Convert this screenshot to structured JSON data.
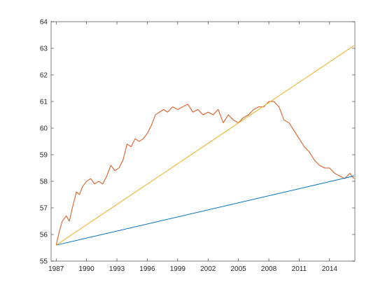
{
  "chart_data": {
    "type": "line",
    "title": "",
    "xlabel": "",
    "ylabel": "",
    "xlim": [
      1986.5,
      2016.5
    ],
    "ylim": [
      55,
      64
    ],
    "grid": false,
    "legend": "none",
    "xticks": [
      {
        "value": 1987,
        "label": "1987"
      },
      {
        "value": 1990,
        "label": "1990"
      },
      {
        "value": 1993,
        "label": "1993"
      },
      {
        "value": 1996,
        "label": "1996"
      },
      {
        "value": 1999,
        "label": "1999"
      },
      {
        "value": 2002,
        "label": "2002"
      },
      {
        "value": 2005,
        "label": "2005"
      },
      {
        "value": 2008,
        "label": "2008"
      },
      {
        "value": 2011,
        "label": "2011"
      },
      {
        "value": 2014,
        "label": "2014"
      }
    ],
    "yticks": [
      {
        "value": 55,
        "label": "55"
      },
      {
        "value": 56,
        "label": "56"
      },
      {
        "value": 57,
        "label": "57"
      },
      {
        "value": 58,
        "label": "58"
      },
      {
        "value": 59,
        "label": "59"
      },
      {
        "value": 60,
        "label": "60"
      },
      {
        "value": 61,
        "label": "61"
      },
      {
        "value": 62,
        "label": "62"
      },
      {
        "value": 63,
        "label": "63"
      },
      {
        "value": 64,
        "label": "64"
      }
    ],
    "series": [
      {
        "color": "#D95319",
        "x": [
          1987.0,
          1987.3,
          1987.6,
          1988.0,
          1988.3,
          1988.6,
          1989.0,
          1989.3,
          1989.6,
          1990.0,
          1990.4,
          1990.8,
          1991.2,
          1991.6,
          1992.0,
          1992.4,
          1992.8,
          1993.2,
          1993.6,
          1994.0,
          1994.4,
          1994.8,
          1995.2,
          1995.6,
          1996.0,
          1996.4,
          1996.8,
          1997.2,
          1997.6,
          1998.0,
          1998.5,
          1999.0,
          1999.5,
          2000.0,
          2000.5,
          2001.0,
          2001.5,
          2002.0,
          2002.5,
          2003.0,
          2003.5,
          2004.0,
          2004.5,
          2005.0,
          2005.5,
          2006.0,
          2006.5,
          2007.0,
          2007.5,
          2008.0,
          2008.5,
          2009.0,
          2009.5,
          2010.0,
          2010.5,
          2011.0,
          2011.5,
          2012.0,
          2012.5,
          2013.0,
          2013.5,
          2014.0,
          2014.5,
          2015.0,
          2015.5,
          2016.0,
          2016.4
        ],
        "y": [
          55.6,
          56.1,
          56.5,
          56.7,
          56.5,
          57.0,
          57.6,
          57.5,
          57.8,
          58.0,
          58.1,
          57.9,
          58.0,
          57.9,
          58.2,
          58.6,
          58.4,
          58.5,
          58.8,
          59.4,
          59.3,
          59.6,
          59.5,
          59.6,
          59.8,
          60.1,
          60.5,
          60.6,
          60.7,
          60.6,
          60.8,
          60.7,
          60.8,
          60.9,
          60.6,
          60.7,
          60.5,
          60.6,
          60.5,
          60.7,
          60.2,
          60.5,
          60.3,
          60.2,
          60.4,
          60.5,
          60.7,
          60.8,
          60.8,
          61.0,
          61.0,
          60.8,
          60.3,
          60.2,
          59.9,
          59.6,
          59.3,
          59.1,
          58.8,
          58.6,
          58.5,
          58.5,
          58.3,
          58.2,
          58.1,
          58.3,
          58.1
        ]
      },
      {
        "color": "#0072BD",
        "x": [
          1987.0,
          2016.4
        ],
        "y": [
          55.6,
          58.2
        ]
      },
      {
        "color": "#EDB120",
        "x": [
          1987.0,
          2016.4
        ],
        "y": [
          55.6,
          63.1
        ]
      }
    ]
  }
}
